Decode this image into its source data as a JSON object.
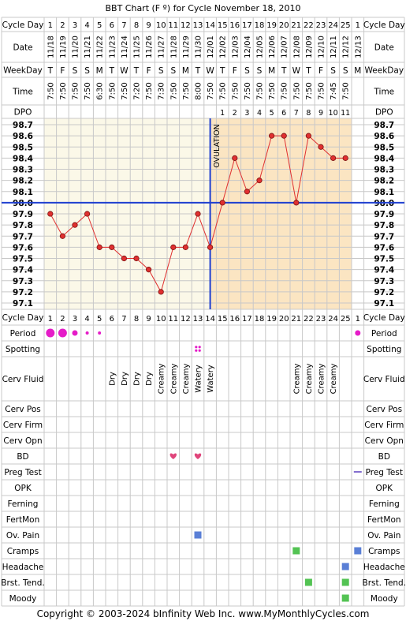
{
  "title": "BBT Chart (F º) for Cycle November 18, 2010",
  "copyright": "Copyright © 2003-2024 bInfinity Web Inc.     www.MyMonthlyCycles.com",
  "row_labels": {
    "cycle_day": "Cycle Day",
    "date": "Date",
    "weekday": "WeekDay",
    "time": "Time",
    "dpo": "DPO",
    "period": "Period",
    "spotting": "Spotting",
    "cerv_fluid": "Cerv Fluid",
    "cerv_pos": "Cerv Pos",
    "cerv_firm": "Cerv Firm",
    "cerv_opn": "Cerv Opn",
    "bd": "BD",
    "preg_test": "Preg Test",
    "opk": "OPK",
    "ferning": "Ferning",
    "fertmon": "FertMon",
    "ov_pain": "Ov. Pain",
    "cramps": "Cramps",
    "headache": "Headache",
    "brst_tend": "Brst. Tend.",
    "moody": "Moody"
  },
  "ovulation_label": "OVULATION",
  "colors": {
    "grid": "#c8c8c8",
    "pre_bg": "#fbf8e8",
    "post_bg": "#fbe5c2",
    "line": "#e03030",
    "coverline": "#1f3fd0",
    "ovulation": "#1f3fd0",
    "period": "#e51cc8",
    "heart": "#e0457b",
    "square": "#53c353",
    "ovpain": "#5a7fd6"
  },
  "chart_data": {
    "type": "line",
    "title": "BBT Chart (F º) for Cycle November 18, 2010",
    "cycle_days": [
      "1",
      "2",
      "3",
      "4",
      "5",
      "6",
      "7",
      "8",
      "9",
      "10",
      "11",
      "12",
      "13",
      "14",
      "15",
      "16",
      "17",
      "18",
      "19",
      "20",
      "21",
      "22",
      "23",
      "24",
      "25",
      "1"
    ],
    "dates": [
      "11/18",
      "11/19",
      "11/20",
      "11/21",
      "11/22",
      "11/23",
      "11/24",
      "11/25",
      "11/26",
      "11/27",
      "11/28",
      "11/29",
      "11/30",
      "12/01",
      "12/02",
      "12/03",
      "12/04",
      "12/05",
      "12/06",
      "12/07",
      "12/08",
      "12/09",
      "12/10",
      "12/11",
      "12/12",
      "12/13"
    ],
    "weekdays": [
      "T",
      "F",
      "S",
      "S",
      "M",
      "T",
      "W",
      "T",
      "F",
      "S",
      "S",
      "M",
      "T",
      "W",
      "T",
      "F",
      "S",
      "S",
      "M",
      "T",
      "W",
      "T",
      "F",
      "S",
      "S",
      "M"
    ],
    "times": [
      "7:50",
      "7:50",
      "7:50",
      "7:50",
      "6:30",
      "7:50",
      "7:50",
      "7:20",
      "7:50",
      "7:30",
      "7:50",
      "7:50",
      "8:00",
      "7:50",
      "7:50",
      "7:50",
      "7:50",
      "7:50",
      "7:50",
      "7:50",
      "7:50",
      "7:50",
      "7:50",
      "7:45",
      "7:50",
      ""
    ],
    "dpo": [
      "",
      "",
      "",
      "",
      "",
      "",
      "",
      "",
      "",
      "",
      "",
      "",
      "",
      "",
      "1",
      "2",
      "3",
      "4",
      "5",
      "6",
      "7",
      "8",
      "9",
      "10",
      "11",
      ""
    ],
    "temps": [
      97.9,
      97.7,
      97.8,
      97.9,
      97.6,
      97.6,
      97.5,
      97.5,
      97.4,
      97.2,
      97.6,
      97.6,
      97.9,
      97.6,
      98.0,
      98.4,
      98.1,
      98.2,
      98.6,
      98.6,
      98.0,
      98.6,
      98.5,
      98.4,
      98.4,
      null
    ],
    "y_ticks": [
      "98.7",
      "98.6",
      "98.5",
      "98.4",
      "98.3",
      "98.2",
      "98.1",
      "98.0",
      "97.9",
      "97.8",
      "97.7",
      "97.6",
      "97.5",
      "97.4",
      "97.3",
      "97.2",
      "97.1"
    ],
    "ylim": [
      97.1,
      98.7
    ],
    "coverline": 98.0,
    "ovulation_after_day_index": 13,
    "period": [
      "large",
      "large",
      "medium",
      "small",
      "small",
      "",
      "",
      "",
      "",
      "",
      "",
      "",
      "",
      "",
      "",
      "",
      "",
      "",
      "",
      "",
      "",
      "",
      "",
      "",
      "",
      "medium"
    ],
    "spotting": [
      13
    ],
    "cerv_fluid": [
      "",
      "",
      "",
      "",
      "",
      "Dry",
      "Dry",
      "Dry",
      "Dry",
      "Creamy",
      "Creamy",
      "Creamy",
      "Watery",
      "Watery",
      "",
      "",
      "",
      "",
      "",
      "",
      "Creamy",
      "Creamy",
      "Creamy",
      "Creamy",
      "",
      ""
    ],
    "bd": [
      11,
      13
    ],
    "preg_test": [
      26
    ],
    "ov_pain": [
      13
    ],
    "cramps": [
      21,
      26
    ],
    "headache": [
      25
    ],
    "brst_tend": [
      22,
      25
    ],
    "moody": [
      25
    ]
  }
}
